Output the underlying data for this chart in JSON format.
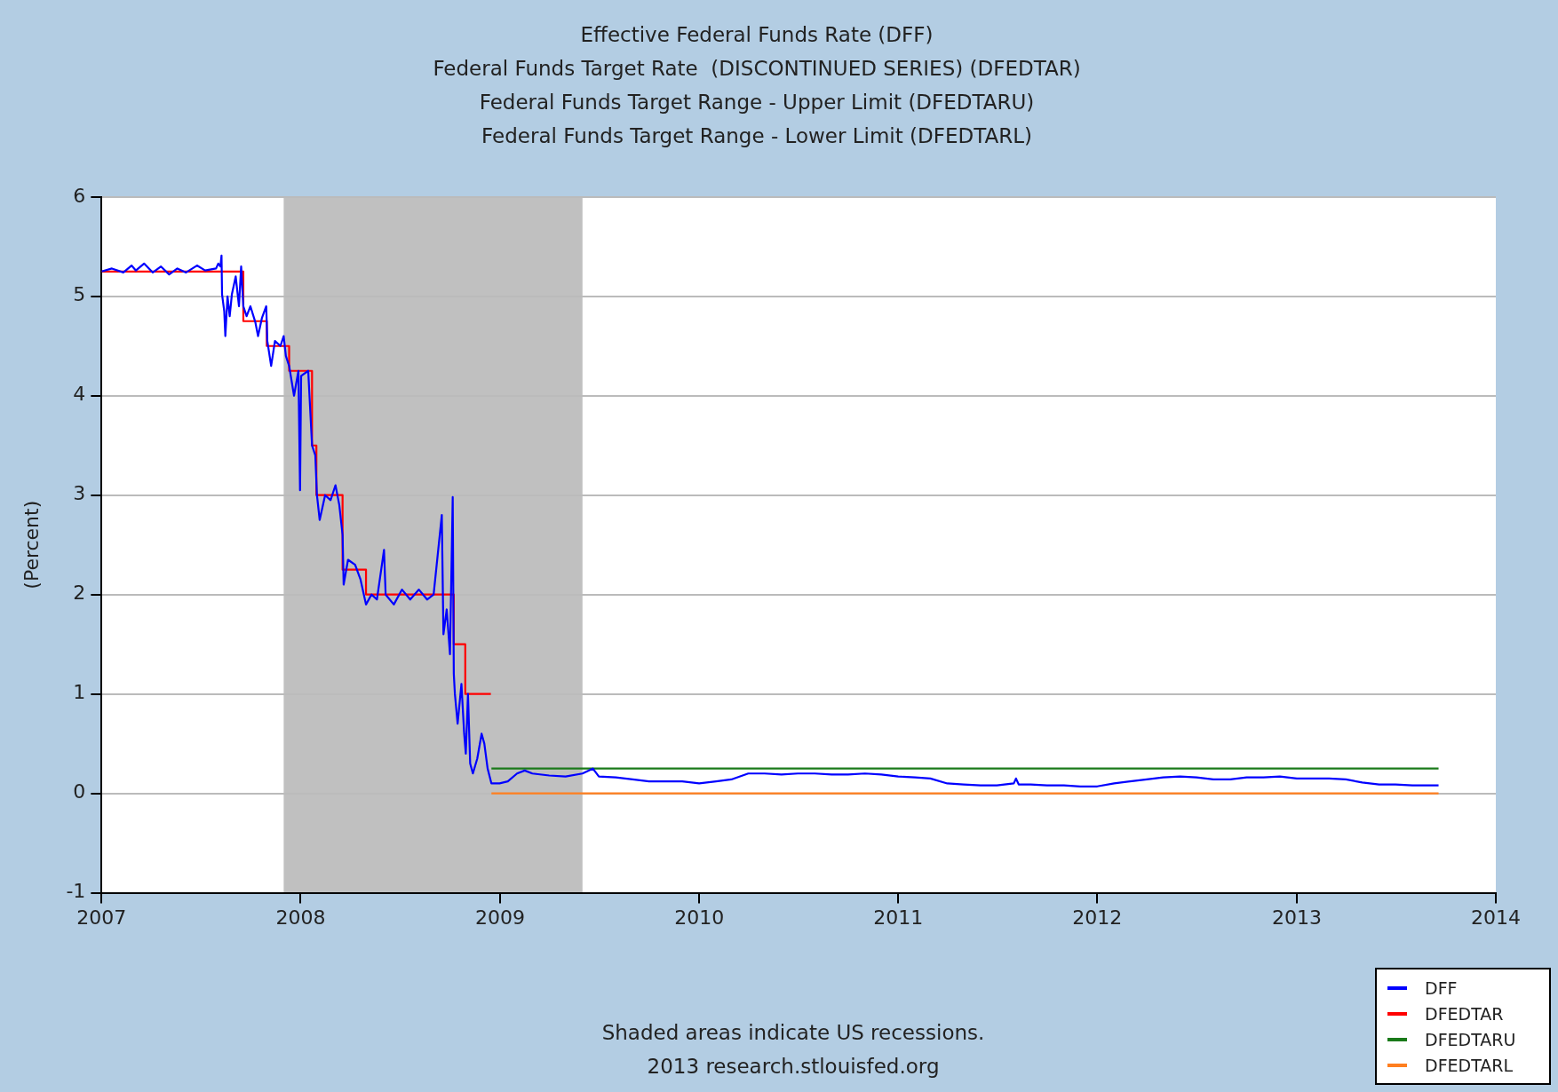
{
  "chart_data": {
    "type": "line",
    "title": "Effective Federal Funds Rate (DFF)\nFederal Funds Target Rate  (DISCONTINUED SERIES) (DFEDTAR)\nFederal Funds Target Range - Upper Limit (DFEDTARU)\nFederal Funds Target Range - Lower Limit (DFEDTARL)",
    "ylabel": "(Percent)",
    "xlim": [
      "2007",
      "2014"
    ],
    "xticks": [
      "2007",
      "2008",
      "2009",
      "2010",
      "2011",
      "2012",
      "2013",
      "2014"
    ],
    "ylim": [
      -1,
      6
    ],
    "yticks": [
      -1,
      0,
      1,
      2,
      3,
      4,
      5,
      6
    ],
    "grid": "y",
    "legend": "bottom right",
    "bands": [
      {
        "axis": "x",
        "from": "2007-12-01",
        "to": "2009-06-01",
        "color": "#c0c0c0"
      }
    ],
    "annotations": [
      "Shaded areas indicate US recessions.",
      "2013 research.stlouisfed.org"
    ],
    "series": [
      {
        "name": "DFF",
        "color": "#0000ff",
        "type": "line",
        "x": [
          "2007-01-01",
          "2007-01-20",
          "2007-02-10",
          "2007-02-25",
          "2007-03-05",
          "2007-03-20",
          "2007-04-05",
          "2007-04-20",
          "2007-05-05",
          "2007-05-20",
          "2007-06-05",
          "2007-06-25",
          "2007-07-10",
          "2007-07-30",
          "2007-08-03",
          "2007-08-07",
          "2007-08-09",
          "2007-08-10",
          "2007-08-14",
          "2007-08-16",
          "2007-08-20",
          "2007-08-24",
          "2007-08-28",
          "2007-09-04",
          "2007-09-10",
          "2007-09-14",
          "2007-09-18",
          "2007-09-24",
          "2007-10-01",
          "2007-10-10",
          "2007-10-15",
          "2007-10-22",
          "2007-10-30",
          "2007-11-01",
          "2007-11-08",
          "2007-11-15",
          "2007-11-25",
          "2007-12-01",
          "2007-12-05",
          "2007-12-11",
          "2007-12-20",
          "2007-12-28",
          "2007-12-31",
          "2008-01-02",
          "2008-01-15",
          "2008-01-22",
          "2008-01-28",
          "2008-01-31",
          "2008-02-05",
          "2008-02-15",
          "2008-02-25",
          "2008-03-05",
          "2008-03-12",
          "2008-03-18",
          "2008-03-20",
          "2008-03-28",
          "2008-04-10",
          "2008-04-20",
          "2008-04-30",
          "2008-05-10",
          "2008-05-20",
          "2008-06-02",
          "2008-06-05",
          "2008-06-20",
          "2008-07-05",
          "2008-07-20",
          "2008-08-05",
          "2008-08-20",
          "2008-09-01",
          "2008-09-16",
          "2008-09-19",
          "2008-09-25",
          "2008-10-01",
          "2008-10-06",
          "2008-10-08",
          "2008-10-10",
          "2008-10-15",
          "2008-10-22",
          "2008-10-27",
          "2008-10-30",
          "2008-11-03",
          "2008-11-07",
          "2008-11-12",
          "2008-11-20",
          "2008-11-28",
          "2008-12-03",
          "2008-12-09",
          "2008-12-16",
          "2008-12-31",
          "2009-01-15",
          "2009-02-01",
          "2009-02-15",
          "2009-03-01",
          "2009-04-01",
          "2009-05-01",
          "2009-06-01",
          "2009-06-20",
          "2009-07-01",
          "2009-08-01",
          "2009-09-01",
          "2009-10-01",
          "2009-11-01",
          "2009-12-01",
          "2010-01-01",
          "2010-02-01",
          "2010-03-01",
          "2010-04-01",
          "2010-05-01",
          "2010-06-01",
          "2010-07-01",
          "2010-08-01",
          "2010-09-01",
          "2010-10-01",
          "2010-11-01",
          "2010-12-01",
          "2011-01-01",
          "2011-02-01",
          "2011-03-01",
          "2011-04-01",
          "2011-05-01",
          "2011-06-01",
          "2011-07-01",
          "2011-08-01",
          "2011-08-05",
          "2011-08-10",
          "2011-09-01",
          "2011-10-01",
          "2011-11-01",
          "2011-12-01",
          "2012-01-01",
          "2012-02-01",
          "2012-03-01",
          "2012-04-01",
          "2012-05-01",
          "2012-06-01",
          "2012-07-01",
          "2012-08-01",
          "2012-09-01",
          "2012-10-01",
          "2012-11-01",
          "2012-12-01",
          "2013-01-01",
          "2013-02-01",
          "2013-03-01",
          "2013-04-01",
          "2013-05-01",
          "2013-06-01",
          "2013-07-01",
          "2013-08-01",
          "2013-09-01",
          "2013-09-18"
        ],
        "values": [
          5.25,
          5.28,
          5.24,
          5.31,
          5.26,
          5.33,
          5.24,
          5.3,
          5.22,
          5.28,
          5.24,
          5.31,
          5.26,
          5.28,
          5.33,
          5.3,
          5.41,
          5.02,
          4.85,
          4.6,
          5.0,
          4.8,
          5.02,
          5.2,
          4.9,
          5.3,
          4.9,
          4.8,
          4.9,
          4.74,
          4.6,
          4.78,
          4.9,
          4.55,
          4.3,
          4.55,
          4.5,
          4.6,
          4.4,
          4.3,
          4.0,
          4.25,
          3.05,
          4.2,
          4.25,
          3.5,
          3.4,
          3.0,
          2.75,
          3.0,
          2.95,
          3.1,
          2.9,
          2.6,
          2.1,
          2.35,
          2.3,
          2.15,
          1.9,
          2.0,
          1.95,
          2.45,
          2.0,
          1.9,
          2.05,
          1.95,
          2.05,
          1.95,
          2.0,
          2.8,
          1.6,
          1.85,
          1.4,
          2.98,
          1.2,
          1.0,
          0.7,
          1.1,
          0.6,
          0.4,
          1.0,
          0.3,
          0.2,
          0.35,
          0.6,
          0.5,
          0.25,
          0.1,
          0.1,
          0.12,
          0.2,
          0.23,
          0.2,
          0.18,
          0.17,
          0.2,
          0.25,
          0.17,
          0.16,
          0.14,
          0.12,
          0.12,
          0.12,
          0.1,
          0.12,
          0.14,
          0.2,
          0.2,
          0.19,
          0.2,
          0.2,
          0.19,
          0.19,
          0.2,
          0.19,
          0.17,
          0.16,
          0.15,
          0.1,
          0.09,
          0.08,
          0.08,
          0.1,
          0.15,
          0.09,
          0.09,
          0.08,
          0.08,
          0.07,
          0.07,
          0.1,
          0.12,
          0.14,
          0.16,
          0.17,
          0.16,
          0.14,
          0.14,
          0.16,
          0.16,
          0.17,
          0.15,
          0.15,
          0.15,
          0.14,
          0.11,
          0.09,
          0.09,
          0.08,
          0.08,
          0.08
        ]
      },
      {
        "name": "DFEDTAR",
        "color": "#ff0000",
        "type": "step",
        "x": [
          "2007-01-01",
          "2007-09-18",
          "2007-10-31",
          "2007-12-11",
          "2008-01-22",
          "2008-01-30",
          "2008-03-18",
          "2008-04-30",
          "2008-10-08",
          "2008-10-29",
          "2008-12-15"
        ],
        "values": [
          5.25,
          4.75,
          4.5,
          4.25,
          3.5,
          3.0,
          2.25,
          2.0,
          1.5,
          1.0,
          1.0
        ]
      },
      {
        "name": "DFEDTARU",
        "color": "#1a7a1a",
        "type": "line",
        "x": [
          "2008-12-16",
          "2013-09-18"
        ],
        "values": [
          0.25,
          0.25
        ]
      },
      {
        "name": "DFEDTARL",
        "color": "#ff7f1f",
        "type": "line",
        "x": [
          "2008-12-16",
          "2013-09-18"
        ],
        "values": [
          0,
          0
        ]
      }
    ]
  }
}
